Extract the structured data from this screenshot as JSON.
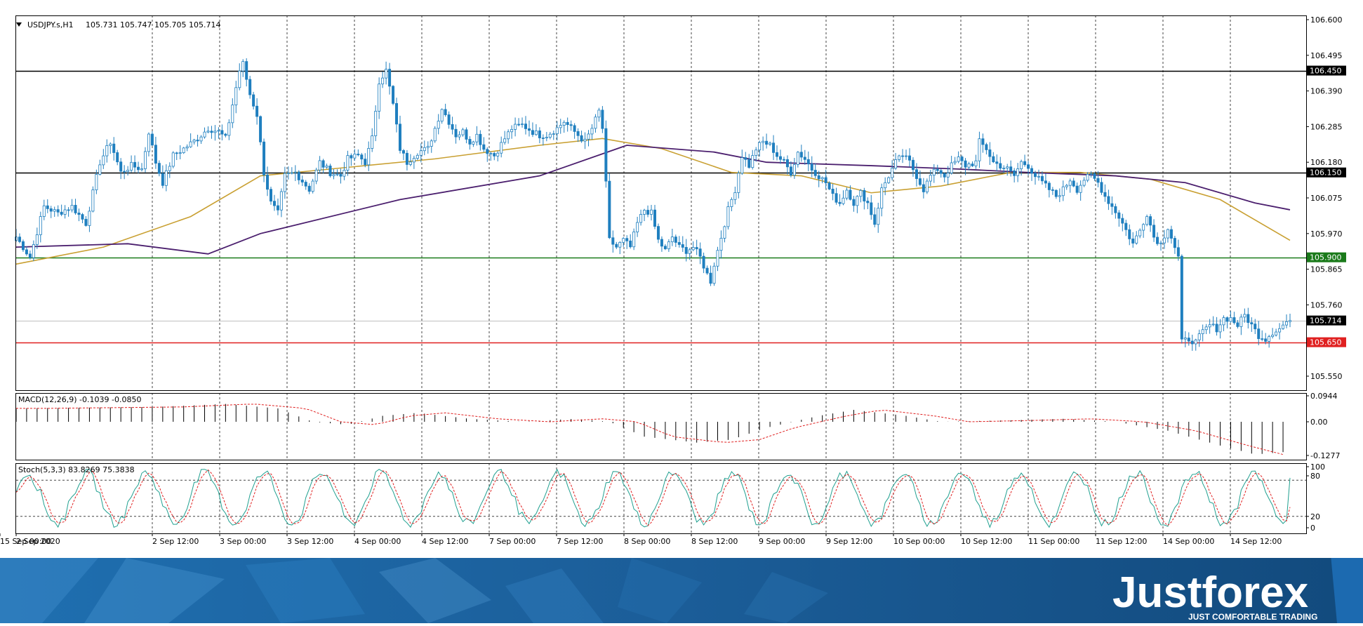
{
  "main": {
    "symbol_label": "USDJPY.s,H1",
    "ohlc_label": "105.731 105.747 105.705 105.714",
    "y_ticks": [
      "106.600",
      "106.495",
      "106.390",
      "106.285",
      "106.180",
      "106.075",
      "105.970",
      "105.865",
      "105.760",
      "105.550"
    ],
    "price_tags": [
      {
        "value": "106.450",
        "bg": "#000000"
      },
      {
        "value": "106.150",
        "bg": "#000000"
      },
      {
        "value": "105.900",
        "bg": "#1a7a1a"
      },
      {
        "value": "105.714",
        "bg": "#000000"
      },
      {
        "value": "105.650",
        "bg": "#e02020"
      }
    ]
  },
  "macd": {
    "label": "MACD(12,26,9) -0.1039 -0.0850",
    "y_ticks": [
      "0.0944",
      "0.00",
      "-0.1277"
    ]
  },
  "stoch": {
    "label": "Stoch(5,3,3) 83.8269 75.3838",
    "y_ticks": [
      "100",
      "80",
      "20",
      "0"
    ]
  },
  "x_ticks": [
    "2 Sep 2020",
    "2 Sep 12:00",
    "3 Sep 00:00",
    "3 Sep 12:00",
    "4 Sep 00:00",
    "4 Sep 12:00",
    "7 Sep 00:00",
    "7 Sep 12:00",
    "8 Sep 00:00",
    "8 Sep 12:00",
    "9 Sep 00:00",
    "9 Sep 12:00",
    "10 Sep 00:00",
    "10 Sep 12:00",
    "11 Sep 00:00",
    "11 Sep 12:00",
    "14 Sep 00:00",
    "14 Sep 12:00",
    "15 Sep 00:00"
  ],
  "chart_data": {
    "type": "candlestick",
    "symbol": "USDJPY.s",
    "timeframe": "H1",
    "ylim": [
      105.5,
      106.6
    ],
    "horizontal_levels": [
      {
        "value": 106.45,
        "color": "#000000"
      },
      {
        "value": 106.15,
        "color": "#000000"
      },
      {
        "value": 105.9,
        "color": "#1a7a1a"
      },
      {
        "value": 105.65,
        "color": "#e02020"
      }
    ],
    "current_price": 105.714,
    "price_path": [
      [
        0,
        105.96
      ],
      [
        4,
        105.9
      ],
      [
        8,
        106.05
      ],
      [
        12,
        106.03
      ],
      [
        16,
        106.05
      ],
      [
        20,
        106.0
      ],
      [
        24,
        106.18
      ],
      [
        27,
        106.24
      ],
      [
        30,
        106.15
      ],
      [
        33,
        106.17
      ],
      [
        36,
        106.16
      ],
      [
        38,
        106.27
      ],
      [
        40,
        106.18
      ],
      [
        42,
        106.12
      ],
      [
        45,
        106.2
      ],
      [
        48,
        106.22
      ],
      [
        52,
        106.25
      ],
      [
        55,
        106.28
      ],
      [
        58,
        106.27
      ],
      [
        60,
        106.25
      ],
      [
        62,
        106.35
      ],
      [
        64,
        106.45
      ],
      [
        65,
        106.47
      ],
      [
        67,
        106.38
      ],
      [
        69,
        106.32
      ],
      [
        71,
        106.15
      ],
      [
        73,
        106.06
      ],
      [
        75,
        106.03
      ],
      [
        77,
        106.14
      ],
      [
        80,
        106.15
      ],
      [
        84,
        106.1
      ],
      [
        87,
        106.18
      ],
      [
        90,
        106.15
      ],
      [
        93,
        106.14
      ],
      [
        95,
        106.19
      ],
      [
        98,
        106.2
      ],
      [
        100,
        106.18
      ],
      [
        102,
        106.25
      ],
      [
        104,
        106.42
      ],
      [
        106,
        106.45
      ],
      [
        108,
        106.35
      ],
      [
        110,
        106.22
      ],
      [
        112,
        106.18
      ],
      [
        115,
        106.21
      ],
      [
        118,
        106.22
      ],
      [
        120,
        106.28
      ],
      [
        122,
        106.34
      ],
      [
        124,
        106.3
      ],
      [
        126,
        106.26
      ],
      [
        128,
        106.27
      ],
      [
        130,
        106.24
      ],
      [
        132,
        106.26
      ],
      [
        134,
        106.22
      ],
      [
        137,
        106.2
      ],
      [
        140,
        106.25
      ],
      [
        142,
        106.28
      ],
      [
        145,
        106.29
      ],
      [
        148,
        106.27
      ],
      [
        150,
        106.26
      ],
      [
        152,
        106.26
      ],
      [
        155,
        106.28
      ],
      [
        157,
        106.3
      ],
      [
        160,
        106.27
      ],
      [
        163,
        106.24
      ],
      [
        165,
        106.28
      ],
      [
        167,
        106.33
      ],
      [
        168,
        106.28
      ],
      [
        170,
        105.95
      ],
      [
        172,
        105.93
      ],
      [
        174,
        105.95
      ],
      [
        176,
        105.93
      ],
      [
        178,
        106.0
      ],
      [
        180,
        106.04
      ],
      [
        182,
        106.03
      ],
      [
        184,
        105.95
      ],
      [
        186,
        105.92
      ],
      [
        188,
        105.96
      ],
      [
        190,
        105.93
      ],
      [
        192,
        105.92
      ],
      [
        194,
        105.93
      ],
      [
        196,
        105.9
      ],
      [
        198,
        105.85
      ],
      [
        199,
        105.83
      ],
      [
        200,
        105.88
      ],
      [
        202,
        105.96
      ],
      [
        204,
        106.04
      ],
      [
        206,
        106.1
      ],
      [
        208,
        106.2
      ],
      [
        210,
        106.17
      ],
      [
        212,
        106.22
      ],
      [
        214,
        106.24
      ],
      [
        216,
        106.23
      ],
      [
        218,
        106.2
      ],
      [
        220,
        106.18
      ],
      [
        222,
        106.15
      ],
      [
        224,
        106.21
      ],
      [
        226,
        106.19
      ],
      [
        228,
        106.16
      ],
      [
        230,
        106.14
      ],
      [
        232,
        106.12
      ],
      [
        234,
        106.08
      ],
      [
        236,
        106.06
      ],
      [
        238,
        106.1
      ],
      [
        240,
        106.06
      ],
      [
        242,
        106.09
      ],
      [
        244,
        106.06
      ],
      [
        246,
        106.0
      ],
      [
        248,
        106.1
      ],
      [
        250,
        106.14
      ],
      [
        252,
        106.18
      ],
      [
        254,
        106.2
      ],
      [
        256,
        106.18
      ],
      [
        258,
        106.14
      ],
      [
        260,
        106.1
      ],
      [
        262,
        106.14
      ],
      [
        264,
        106.16
      ],
      [
        266,
        106.14
      ],
      [
        268,
        106.17
      ],
      [
        270,
        106.19
      ],
      [
        272,
        106.17
      ],
      [
        275,
        106.18
      ],
      [
        276,
        106.24
      ],
      [
        278,
        106.22
      ],
      [
        280,
        106.18
      ],
      [
        282,
        106.17
      ],
      [
        284,
        106.16
      ],
      [
        286,
        106.14
      ],
      [
        288,
        106.18
      ],
      [
        290,
        106.17
      ],
      [
        292,
        106.14
      ],
      [
        294,
        106.12
      ],
      [
        296,
        106.1
      ],
      [
        298,
        106.08
      ],
      [
        300,
        106.1
      ],
      [
        302,
        106.13
      ],
      [
        304,
        106.1
      ],
      [
        306,
        106.13
      ],
      [
        308,
        106.14
      ],
      [
        310,
        106.12
      ],
      [
        312,
        106.08
      ],
      [
        314,
        106.05
      ],
      [
        316,
        106.02
      ],
      [
        318,
        105.98
      ],
      [
        320,
        105.94
      ],
      [
        322,
        105.98
      ],
      [
        324,
        106.03
      ],
      [
        326,
        105.96
      ],
      [
        328,
        105.94
      ],
      [
        330,
        105.99
      ],
      [
        332,
        105.93
      ],
      [
        333,
        105.9
      ],
      [
        334,
        105.65
      ],
      [
        336,
        105.66
      ],
      [
        338,
        105.65
      ],
      [
        340,
        105.68
      ],
      [
        342,
        105.7
      ],
      [
        344,
        105.69
      ],
      [
        346,
        105.72
      ],
      [
        348,
        105.72
      ],
      [
        350,
        105.7
      ],
      [
        352,
        105.73
      ],
      [
        354,
        105.7
      ],
      [
        356,
        105.67
      ],
      [
        358,
        105.66
      ],
      [
        360,
        105.68
      ],
      [
        362,
        105.69
      ],
      [
        364,
        105.71
      ],
      [
        365,
        105.714
      ]
    ]
  }
}
